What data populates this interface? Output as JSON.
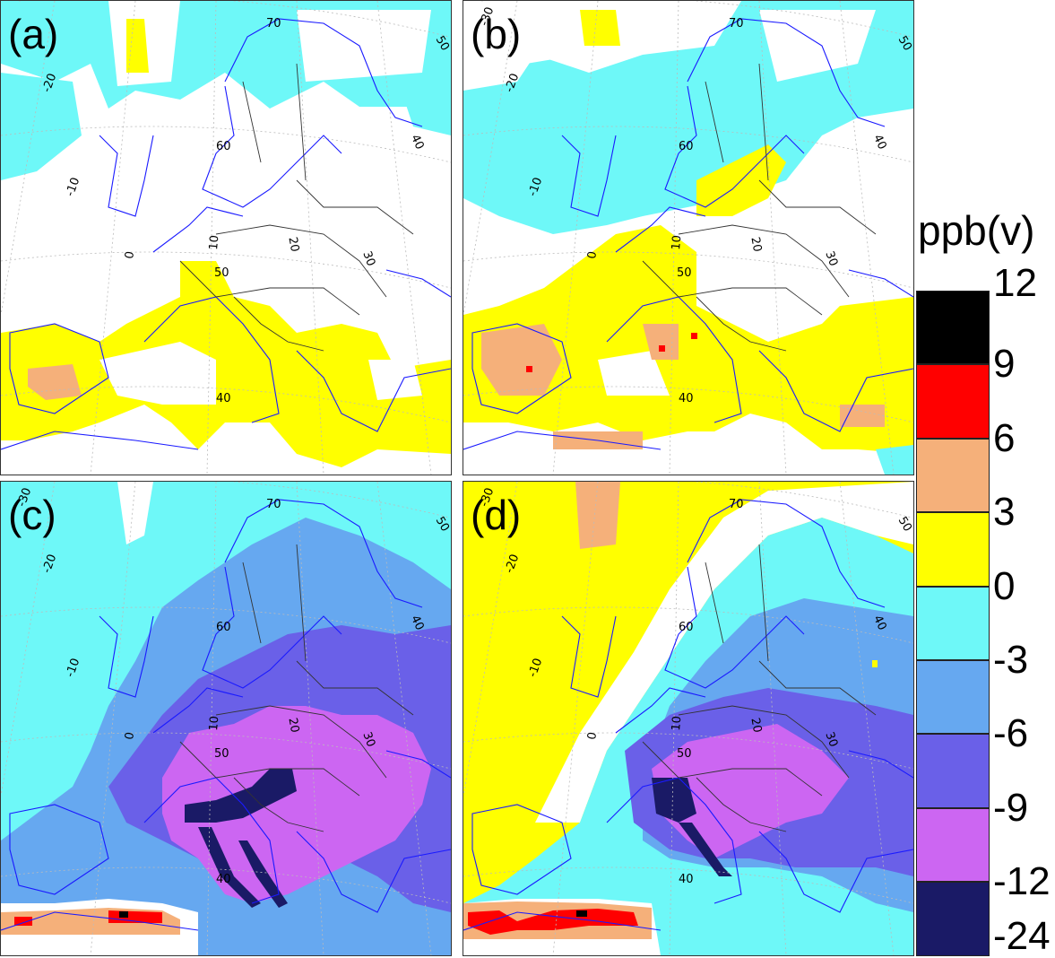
{
  "panels": [
    {
      "label": "(a)",
      "scenario": "a"
    },
    {
      "label": "(b)",
      "scenario": "b"
    },
    {
      "label": "(c)",
      "scenario": "c"
    },
    {
      "label": "(d)",
      "scenario": "d"
    }
  ],
  "gridline_labels": {
    "lat": [
      "70",
      "60",
      "50",
      "40"
    ],
    "lon": [
      "-30",
      "-20",
      "-10",
      "0",
      "10",
      "20",
      "30",
      "40",
      "50"
    ]
  },
  "colorbar": {
    "title": "ppb(v)",
    "ticks": [
      "12",
      "9",
      "6",
      "3",
      "0",
      "-3",
      "-6",
      "-9",
      "-12",
      "-24"
    ],
    "bins": [
      {
        "range": "9 to 12",
        "color": "#000000"
      },
      {
        "range": "6 to 9",
        "color": "#ff0000"
      },
      {
        "range": "3 to 6",
        "color": "#f5b07a"
      },
      {
        "range": "0 to 3",
        "color": "#ffff00"
      },
      {
        "range": "-3 to 0",
        "color": "#6ef8f8"
      },
      {
        "range": "-6 to -3",
        "color": "#66a8f0"
      },
      {
        "range": "-9 to -6",
        "color": "#6a60e8"
      },
      {
        "range": "-12 to -9",
        "color": "#cc66f2"
      },
      {
        "range": "-24 to -12",
        "color": "#1a1a66"
      }
    ]
  },
  "colors": {
    "coastline": "#1a1aff",
    "borders": "#333333",
    "gridlines": "#bbbbbb"
  }
}
